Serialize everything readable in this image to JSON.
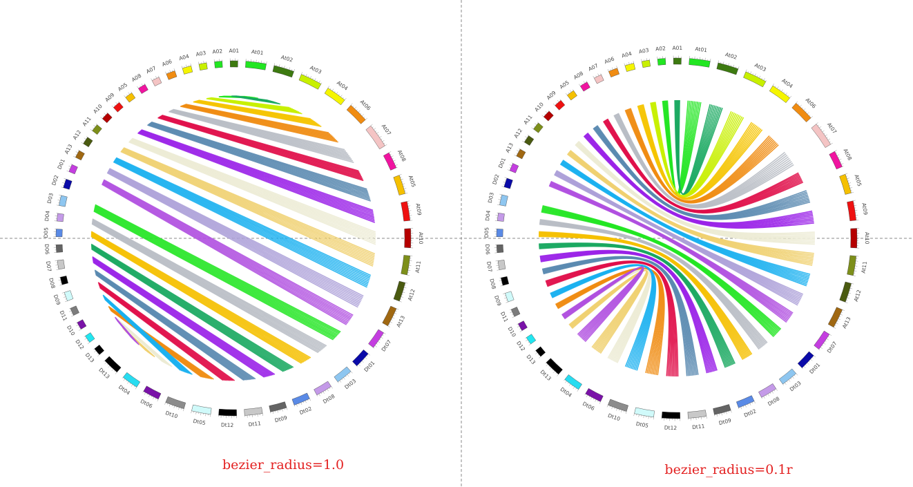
{
  "panels": [
    {
      "caption": "bezier_radius=1.0"
    },
    {
      "caption": "bezier_radius=0.1r"
    }
  ],
  "chromosomes": [
    {
      "name": "At01",
      "color": "#22e622",
      "size": 1.6
    },
    {
      "name": "At02",
      "color": "#3d7a10",
      "size": 1.6
    },
    {
      "name": "At03",
      "color": "#c8f000",
      "size": 1.7
    },
    {
      "name": "At04",
      "color": "#f5f500",
      "size": 1.6
    },
    {
      "name": "At06",
      "color": "#f08c12",
      "size": 1.6
    },
    {
      "name": "At07",
      "color": "#f4c4c4",
      "size": 1.9
    },
    {
      "name": "At08",
      "color": "#f014a0",
      "size": 1.3
    },
    {
      "name": "At05",
      "color": "#f5c000",
      "size": 1.5
    },
    {
      "name": "At09",
      "color": "#ee1111",
      "size": 1.5
    },
    {
      "name": "At10",
      "color": "#b50000",
      "size": 1.5
    },
    {
      "name": "At11",
      "color": "#7d8f1a",
      "size": 1.5
    },
    {
      "name": "At12",
      "color": "#4a5a10",
      "size": 1.5
    },
    {
      "name": "At13",
      "color": "#a06812",
      "size": 1.5
    },
    {
      "name": "Dt07",
      "color": "#c43ee0",
      "size": 1.4
    },
    {
      "name": "Dt01",
      "color": "#0a0aa8",
      "size": 1.3
    },
    {
      "name": "Dt03",
      "color": "#8ec6f0",
      "size": 1.3
    },
    {
      "name": "Dt08",
      "color": "#c49ae8",
      "size": 1.3
    },
    {
      "name": "Dt02",
      "color": "#5a8ae6",
      "size": 1.3
    },
    {
      "name": "Dt09",
      "color": "#646464",
      "size": 1.3
    },
    {
      "name": "Dt11",
      "color": "#c8c8c8",
      "size": 1.4
    },
    {
      "name": "Dt12",
      "color": "#000000",
      "size": 1.4
    },
    {
      "name": "Dt05",
      "color": "#d0fafa",
      "size": 1.5
    },
    {
      "name": "Dt10",
      "color": "#8c8c8c",
      "size": 1.5
    },
    {
      "name": "Dt06",
      "color": "#7a12a8",
      "size": 1.3
    },
    {
      "name": "Dt04",
      "color": "#28dcf0",
      "size": 1.3
    },
    {
      "name": "Dt13",
      "color": "#000000",
      "size": 1.3
    },
    {
      "name": "D13",
      "color": "#000000",
      "size": 0.6
    },
    {
      "name": "D12",
      "color": "#22e6f0",
      "size": 0.6
    },
    {
      "name": "D10",
      "color": "#7a12a8",
      "size": 0.6
    },
    {
      "name": "D11",
      "color": "#7c7c7c",
      "size": 0.6
    },
    {
      "name": "D09",
      "color": "#d0fafa",
      "size": 0.7
    },
    {
      "name": "D08",
      "color": "#000000",
      "size": 0.6
    },
    {
      "name": "D07",
      "color": "#c8c8c8",
      "size": 0.7
    },
    {
      "name": "D06",
      "color": "#646464",
      "size": 0.6
    },
    {
      "name": "D05",
      "color": "#5a8ae6",
      "size": 0.6
    },
    {
      "name": "D04",
      "color": "#c49ae8",
      "size": 0.6
    },
    {
      "name": "D03",
      "color": "#8ec6f0",
      "size": 0.8
    },
    {
      "name": "D02",
      "color": "#0a0aa8",
      "size": 0.7
    },
    {
      "name": "D01",
      "color": "#c43ee0",
      "size": 0.6
    },
    {
      "name": "A13",
      "color": "#a06812",
      "size": 0.6
    },
    {
      "name": "A12",
      "color": "#4a5a10",
      "size": 0.6
    },
    {
      "name": "A11",
      "color": "#7d8f1a",
      "size": 0.6
    },
    {
      "name": "A10",
      "color": "#b50000",
      "size": 0.6
    },
    {
      "name": "A09",
      "color": "#ee1111",
      "size": 0.6
    },
    {
      "name": "A05",
      "color": "#f5c000",
      "size": 0.6
    },
    {
      "name": "A08",
      "color": "#f014a0",
      "size": 0.6
    },
    {
      "name": "A07",
      "color": "#f4c4c4",
      "size": 0.6
    },
    {
      "name": "A06",
      "color": "#f08c12",
      "size": 0.7
    },
    {
      "name": "A04",
      "color": "#f5f500",
      "size": 0.7
    },
    {
      "name": "A03",
      "color": "#c8f000",
      "size": 0.6
    },
    {
      "name": "A02",
      "color": "#22e622",
      "size": 0.6
    },
    {
      "name": "A01",
      "color": "#3d7a10",
      "size": 0.6
    }
  ],
  "link_bundles": [
    {
      "from": "At01",
      "to": "A02",
      "color": "#22e622"
    },
    {
      "from": "At02",
      "to": "A01",
      "color": "#1aa860"
    },
    {
      "from": "At03",
      "to": "A03",
      "color": "#c8f000"
    },
    {
      "from": "At04",
      "to": "A04",
      "color": "#f5c400"
    },
    {
      "from": "At06",
      "to": "A06",
      "color": "#f08c12"
    },
    {
      "from": "At07",
      "to": "A07",
      "color": "#b8bcc4"
    },
    {
      "from": "At08",
      "to": "A08",
      "color": "#e0104a"
    },
    {
      "from": "At05",
      "to": "A05",
      "color": "#5a8ab0"
    },
    {
      "from": "At09",
      "to": "A09",
      "color": "#9a22e8"
    },
    {
      "from": "At10",
      "to": "A10",
      "color": "#ecebd4"
    },
    {
      "from": "At11",
      "to": "A11",
      "color": "#f0d070"
    },
    {
      "from": "At12",
      "to": "A12",
      "color": "#1ab0f0"
    },
    {
      "from": "At13",
      "to": "A13",
      "color": "#aca0d8"
    },
    {
      "from": "Dt07",
      "to": "D01",
      "color": "#b050e0"
    },
    {
      "from": "Dt01",
      "to": "D03",
      "color": "#22e622"
    },
    {
      "from": "Dt03",
      "to": "D04",
      "color": "#b8bcc4"
    },
    {
      "from": "Dt08",
      "to": "D05",
      "color": "#f5c000"
    },
    {
      "from": "Dt02",
      "to": "D06",
      "color": "#1aa860"
    },
    {
      "from": "Dt09",
      "to": "D07",
      "color": "#9a22e8"
    },
    {
      "from": "Dt11",
      "to": "D08",
      "color": "#5a8ab0"
    },
    {
      "from": "Dt12",
      "to": "D09",
      "color": "#e0104a"
    },
    {
      "from": "Dt05",
      "to": "D10",
      "color": "#f08c12"
    },
    {
      "from": "Dt10",
      "to": "D11",
      "color": "#1ab0f0"
    },
    {
      "from": "Dt06",
      "to": "D12",
      "color": "#ecebd4"
    },
    {
      "from": "Dt04",
      "to": "D13",
      "color": "#f0d070"
    },
    {
      "from": "Dt13",
      "to": "D12",
      "color": "#b050e0"
    }
  ]
}
